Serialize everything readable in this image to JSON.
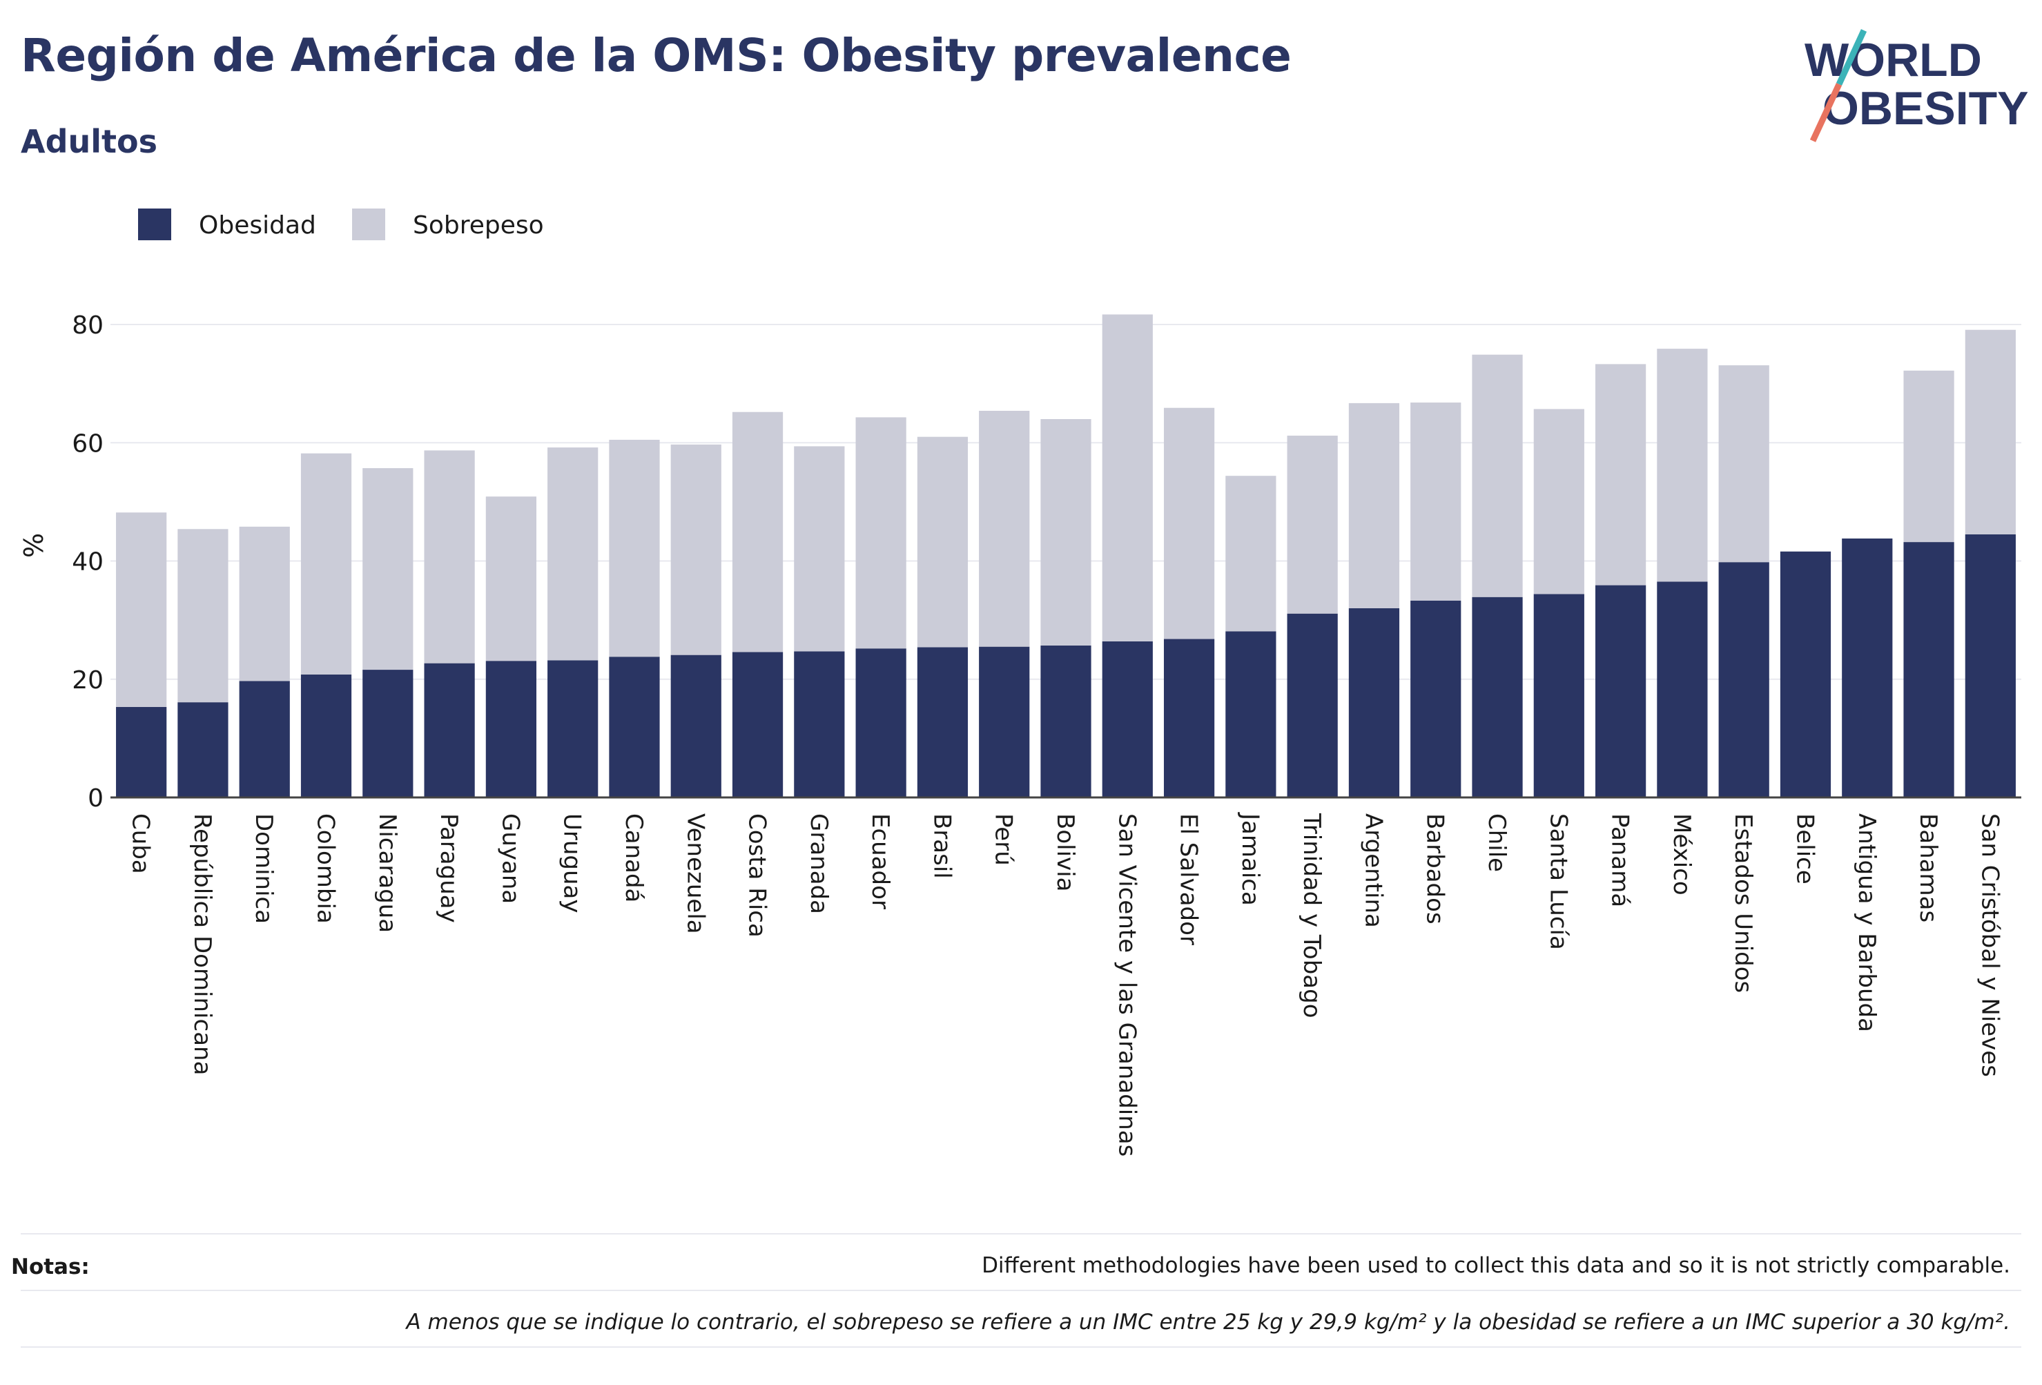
{
  "header": {
    "title": "Región de América de la OMS: Obesity prevalence",
    "subtitle": "Adultos"
  },
  "logo": {
    "line1": "WORLD",
    "line2": "OBESITY"
  },
  "colors": {
    "obesity": "#2a3563",
    "overweight": "#cbccd8",
    "text": "#1a1a1a",
    "grid": "#e8e9ef",
    "logo_teal": "#3bb3b8",
    "logo_coral": "#e8735f"
  },
  "chart_data": {
    "type": "bar",
    "stacked": true,
    "ylabel": "%",
    "ylim": [
      0,
      90
    ],
    "yticks": [
      0,
      20,
      40,
      60,
      80
    ],
    "grid": true,
    "legend_position": "top-left",
    "categories": [
      "Cuba",
      "República Dominicana",
      "Dominica",
      "Colombia",
      "Nicaragua",
      "Paraguay",
      "Guyana",
      "Uruguay",
      "Canadá",
      "Venezuela",
      "Costa Rica",
      "Granada",
      "Ecuador",
      "Brasil",
      "Perú",
      "Bolivia",
      "San Vicente y las Granadinas",
      "El Salvador",
      "Jamaica",
      "Trinidad y Tobago",
      "Argentina",
      "Barbados",
      "Chile",
      "Santa Lucía",
      "Panamá",
      "México",
      "Estados Unidos",
      "Belice",
      "Antigua y Barbuda",
      "Bahamas",
      "San Cristóbal y Nieves"
    ],
    "series": [
      {
        "name": "Obesidad",
        "values": [
          15.3,
          16.1,
          19.7,
          20.8,
          21.6,
          22.7,
          23.1,
          23.2,
          23.8,
          24.1,
          24.6,
          24.7,
          25.2,
          25.4,
          25.5,
          25.7,
          26.4,
          26.8,
          28.1,
          31.1,
          32.0,
          33.3,
          33.9,
          34.4,
          35.9,
          36.5,
          39.8,
          41.6,
          43.8,
          43.2,
          44.5
        ]
      },
      {
        "name": "Sobrepeso",
        "values": [
          32.9,
          29.3,
          26.1,
          37.4,
          34.1,
          36.0,
          27.8,
          36.0,
          36.7,
          35.6,
          40.6,
          34.7,
          39.1,
          35.6,
          39.9,
          38.3,
          55.3,
          39.1,
          26.3,
          30.1,
          34.7,
          33.5,
          41.0,
          31.3,
          37.4,
          39.4,
          33.3,
          0,
          0,
          29.0,
          34.6
        ]
      }
    ]
  },
  "notes": {
    "label": "Notas:",
    "text": "Different methodologies have been used to collect this data and so it is not strictly comparable.",
    "footnote": "A menos que se indique lo contrario, el sobrepeso se refiere a un IMC entre 25 kg y 29,9 kg/m² y la obesidad se refiere a un IMC superior a 30 kg/m²."
  }
}
